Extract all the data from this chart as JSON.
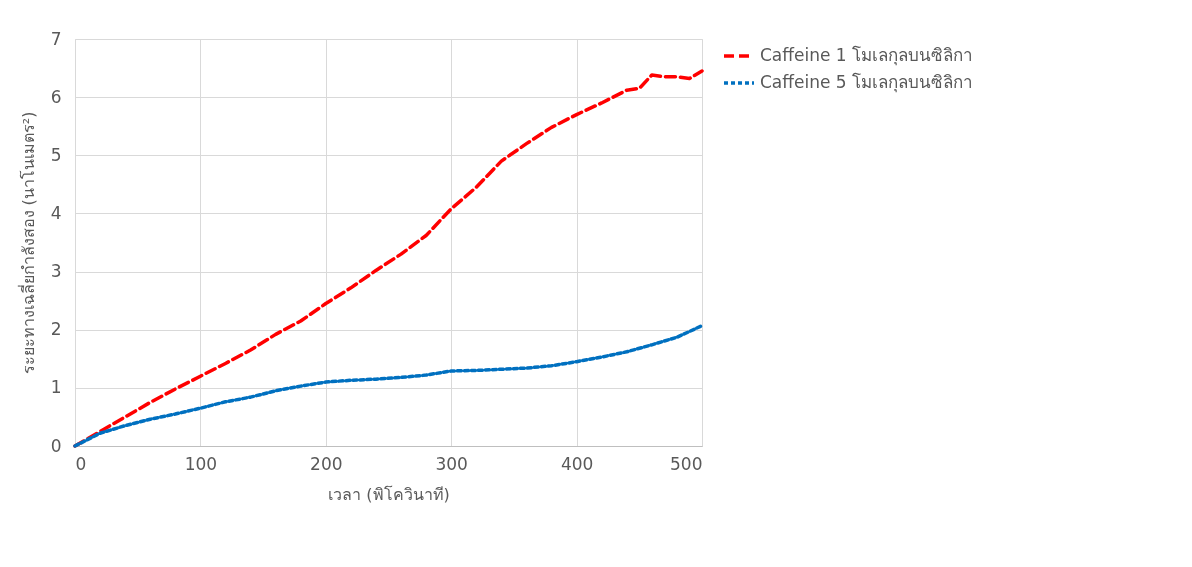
{
  "chart_data": {
    "type": "line",
    "xlabel": "เวลา (พิโควินาที)",
    "ylabel": "ระยะทางเฉลี่ยกำลังสอง (นาโนเมตร²)",
    "xlim": [
      0,
      500
    ],
    "xticks": [
      0,
      100,
      200,
      300,
      400,
      500
    ],
    "ylim": [
      0,
      7
    ],
    "yticks": [
      0,
      1,
      2,
      3,
      4,
      5,
      6,
      7
    ],
    "grid": true,
    "legend": "right",
    "marker": "none",
    "series": [
      {
        "name": "Caffeine 1 โมเลกุลบนซิลิกา",
        "color": "#ff0000",
        "line_style": "dashed",
        "x": [
          0,
          20,
          40,
          60,
          80,
          100,
          120,
          140,
          160,
          180,
          200,
          220,
          240,
          260,
          280,
          300,
          320,
          340,
          360,
          380,
          400,
          420,
          440,
          450,
          460,
          470,
          480,
          490,
          500
        ],
        "values": [
          0,
          0.25,
          0.5,
          0.75,
          0.98,
          1.2,
          1.42,
          1.65,
          1.92,
          2.15,
          2.45,
          2.72,
          3.02,
          3.3,
          3.62,
          4.08,
          4.45,
          4.9,
          5.2,
          5.48,
          5.7,
          5.9,
          6.12,
          6.15,
          6.38,
          6.35,
          6.35,
          6.32,
          6.45
        ]
      },
      {
        "name": "Caffeine 5 โมเลกุลบนซิลิกา",
        "color": "#0070c0",
        "line_style": "dotted",
        "x": [
          0,
          20,
          40,
          60,
          80,
          100,
          120,
          140,
          160,
          180,
          200,
          220,
          240,
          260,
          280,
          300,
          320,
          340,
          360,
          380,
          400,
          420,
          440,
          460,
          480,
          500
        ],
        "values": [
          0,
          0.22,
          0.35,
          0.46,
          0.55,
          0.65,
          0.76,
          0.84,
          0.95,
          1.03,
          1.1,
          1.13,
          1.15,
          1.18,
          1.22,
          1.29,
          1.3,
          1.32,
          1.34,
          1.38,
          1.45,
          1.53,
          1.62,
          1.74,
          1.87,
          2.07
        ]
      }
    ]
  }
}
